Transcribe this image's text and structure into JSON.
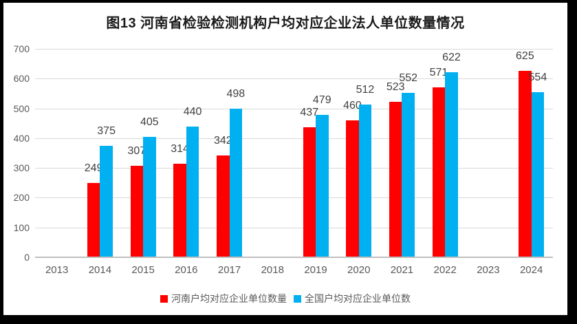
{
  "frame": {
    "background_color": "#000000",
    "chart_background": "#FFFFFF"
  },
  "chart_data": {
    "type": "bar",
    "title": "图13 河南省检验检测机构户均对应企业法人单位数量情况",
    "categories": [
      "2013",
      "2014",
      "2015",
      "2016",
      "2017",
      "2018",
      "2019",
      "2020",
      "2021",
      "2022",
      "2023",
      "2024"
    ],
    "series": [
      {
        "name": "河南户均对应企业单位数量",
        "color": "#FF0000",
        "values": [
          null,
          249,
          307,
          314,
          342,
          null,
          437,
          460,
          523,
          571,
          null,
          625
        ]
      },
      {
        "name": "全国户均对应企业单位数",
        "color": "#00B0F0",
        "values": [
          null,
          375,
          405,
          440,
          498,
          null,
          479,
          512,
          552,
          622,
          null,
          554
        ]
      }
    ],
    "xlabel": "",
    "ylabel": "",
    "ylim": [
      0,
      700
    ],
    "yticks": [
      0,
      100,
      200,
      300,
      400,
      500,
      600,
      700
    ],
    "grid": true,
    "data_labels": true,
    "legend_position": "bottom"
  },
  "styles": {
    "gridline_color": "#D9D9D9",
    "axis_line_color": "#BFBFBF",
    "tick_label_color": "#595959",
    "data_label_color": "#404040",
    "title_color": "#1A1A1A"
  }
}
